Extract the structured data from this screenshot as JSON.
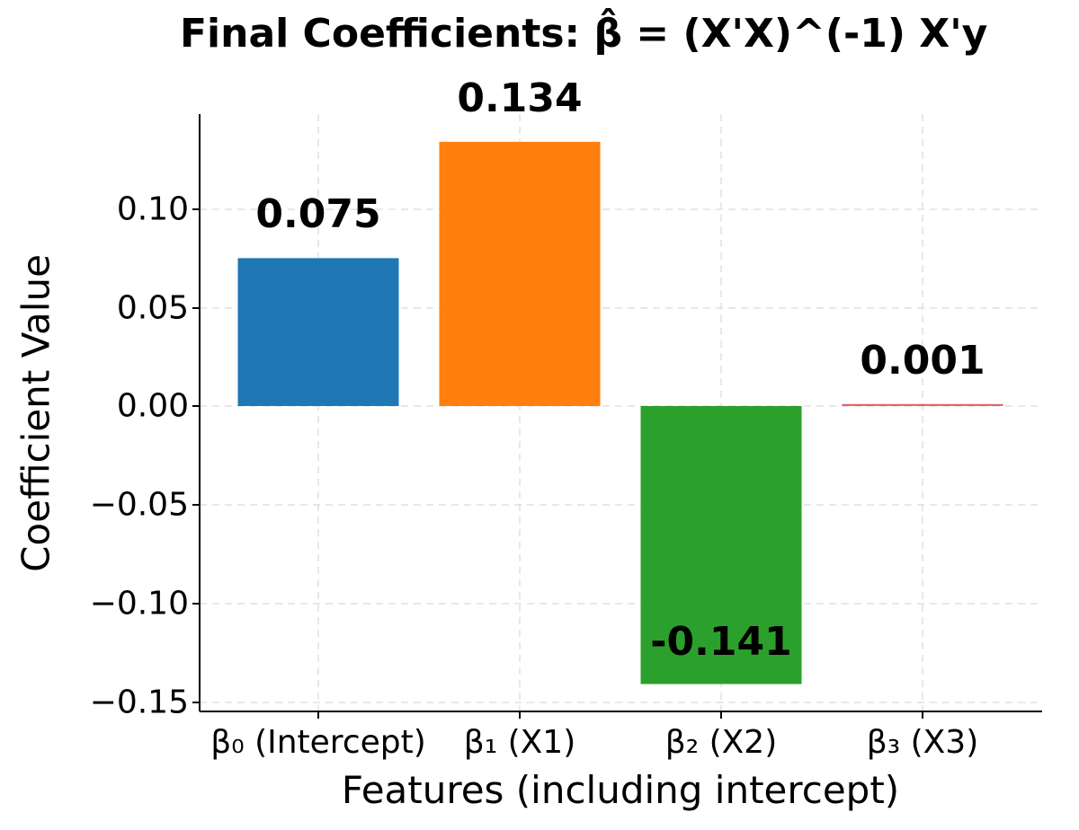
{
  "chart_data": {
    "type": "bar",
    "title": "Final Coefficients: β̂ = (X'X)^(-1) X'y",
    "xlabel": "Features (including intercept)",
    "ylabel": "Coefficient Value",
    "categories": [
      "β₀ (Intercept)",
      "β₁ (X1)",
      "β₂ (X2)",
      "β₃ (X3)"
    ],
    "values": [
      0.075,
      0.134,
      -0.141,
      0.001
    ],
    "value_labels": [
      "0.075",
      "0.134",
      "-0.141",
      "0.001"
    ],
    "colors": [
      "#1f77b4",
      "#ff7f0e",
      "#2ca02c",
      "#d62728"
    ],
    "ylim": [
      -0.155,
      0.148
    ],
    "yticks": [
      0.1,
      0.05,
      0.0,
      -0.05,
      -0.1,
      -0.15
    ],
    "ytick_labels": [
      "0.10",
      "0.05",
      "0.00",
      "−0.05",
      "−0.10",
      "−0.15"
    ],
    "grid": true,
    "legend": null
  }
}
